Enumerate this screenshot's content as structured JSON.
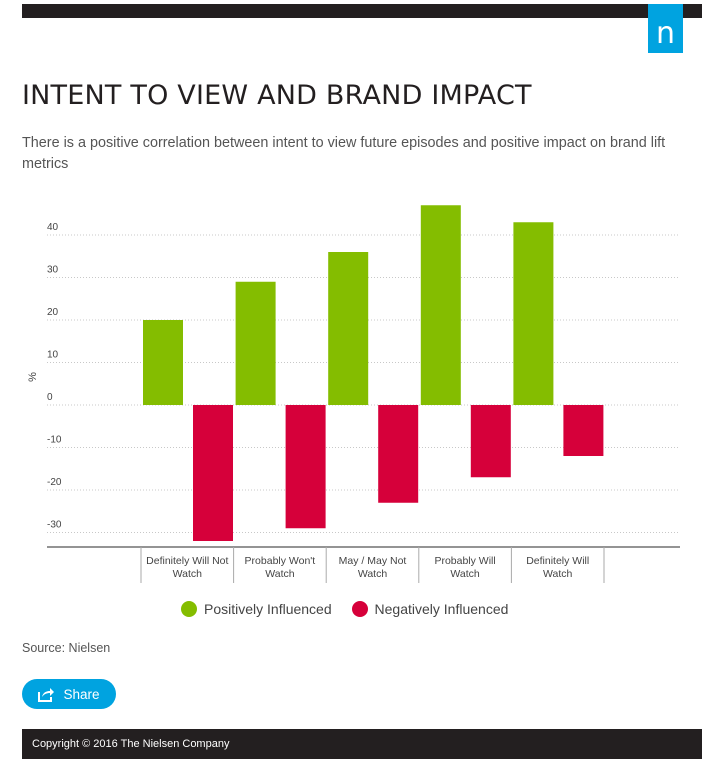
{
  "header": {
    "logo_text": "n"
  },
  "title": "INTENT TO VIEW AND BRAND IMPACT",
  "subtitle": "There is a positive correlation between intent to view future episodes and positive impact on brand lift metrics",
  "chart_data": {
    "type": "bar",
    "ylabel": "%",
    "ylim": [
      -33,
      50
    ],
    "yticks": [
      40,
      30,
      20,
      10,
      0,
      -10,
      -20,
      -30
    ],
    "categories": [
      [
        "Definitely Will Not",
        "Watch"
      ],
      [
        "Probably Won't",
        "Watch"
      ],
      [
        "May / May Not",
        "Watch"
      ],
      [
        "Probably Will",
        "Watch"
      ],
      [
        "Definitely Will",
        "Watch"
      ]
    ],
    "series": [
      {
        "name": "Positively Influenced",
        "color": "#84bd00",
        "values": [
          20,
          29,
          36,
          47,
          43
        ]
      },
      {
        "name": "Negatively Influenced",
        "color": "#d6003a",
        "values": [
          -32,
          -29,
          -23,
          -17,
          -12
        ]
      }
    ],
    "grid": true
  },
  "legend": [
    {
      "label": "Positively Influenced",
      "color": "#84bd00"
    },
    {
      "label": "Negatively Influenced",
      "color": "#d6003a"
    }
  ],
  "source": "Source: Nielsen",
  "share": {
    "label": "Share",
    "icon": "share-icon"
  },
  "footer": {
    "copyright": "Copyright © 2016 The Nielsen Company"
  },
  "colors": {
    "brand_blue": "#00a3e0",
    "dark": "#231f20"
  }
}
